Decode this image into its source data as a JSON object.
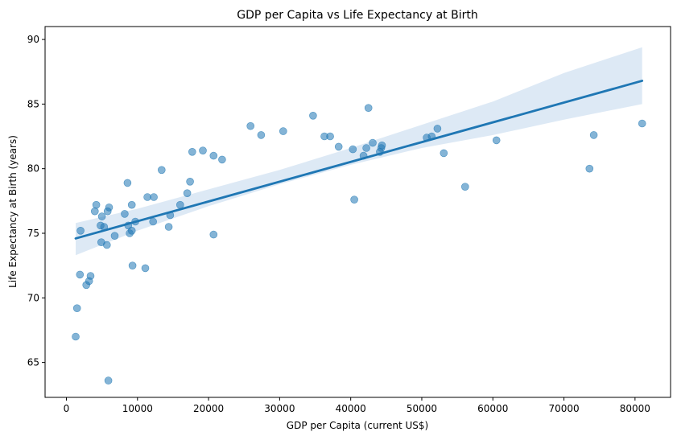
{
  "chart_data": {
    "type": "scatter",
    "title": "GDP per Capita vs Life Expectancy at Birth",
    "xlabel": "GDP per Capita (current US$)",
    "ylabel": "Life Expectancy at Birth (years)",
    "xlim": [
      -3000,
      85000
    ],
    "ylim": [
      62.3,
      91.0
    ],
    "xticks": [
      0,
      10000,
      20000,
      30000,
      40000,
      50000,
      60000,
      70000,
      80000
    ],
    "yticks": [
      65,
      70,
      75,
      80,
      85,
      90
    ],
    "grid": false,
    "colors": {
      "points": "#1f77b4",
      "line": "#1f77b4",
      "band": "#c6dbef"
    },
    "points": [
      {
        "x": 1300,
        "y": 67.0
      },
      {
        "x": 1500,
        "y": 69.2
      },
      {
        "x": 1900,
        "y": 71.8
      },
      {
        "x": 2000,
        "y": 75.2
      },
      {
        "x": 2800,
        "y": 71.0
      },
      {
        "x": 3200,
        "y": 71.3
      },
      {
        "x": 3400,
        "y": 71.7
      },
      {
        "x": 4000,
        "y": 76.7
      },
      {
        "x": 4200,
        "y": 77.2
      },
      {
        "x": 4800,
        "y": 75.6
      },
      {
        "x": 4900,
        "y": 74.3
      },
      {
        "x": 5000,
        "y": 76.3
      },
      {
        "x": 5300,
        "y": 75.5
      },
      {
        "x": 5700,
        "y": 74.1
      },
      {
        "x": 5800,
        "y": 76.7
      },
      {
        "x": 5900,
        "y": 63.6
      },
      {
        "x": 6000,
        "y": 77.0
      },
      {
        "x": 6800,
        "y": 74.8
      },
      {
        "x": 8200,
        "y": 76.5
      },
      {
        "x": 8600,
        "y": 78.9
      },
      {
        "x": 8700,
        "y": 75.6
      },
      {
        "x": 8900,
        "y": 75.0
      },
      {
        "x": 9200,
        "y": 75.2
      },
      {
        "x": 9200,
        "y": 77.2
      },
      {
        "x": 9300,
        "y": 72.5
      },
      {
        "x": 9700,
        "y": 75.9
      },
      {
        "x": 11100,
        "y": 72.3
      },
      {
        "x": 11400,
        "y": 77.8
      },
      {
        "x": 12200,
        "y": 75.9
      },
      {
        "x": 12300,
        "y": 77.8
      },
      {
        "x": 13400,
        "y": 79.9
      },
      {
        "x": 14400,
        "y": 75.5
      },
      {
        "x": 14600,
        "y": 76.4
      },
      {
        "x": 16000,
        "y": 77.2
      },
      {
        "x": 17000,
        "y": 78.1
      },
      {
        "x": 17400,
        "y": 79.0
      },
      {
        "x": 17700,
        "y": 81.3
      },
      {
        "x": 19200,
        "y": 81.4
      },
      {
        "x": 20700,
        "y": 81.0
      },
      {
        "x": 20700,
        "y": 74.9
      },
      {
        "x": 21900,
        "y": 80.7
      },
      {
        "x": 25900,
        "y": 83.3
      },
      {
        "x": 27400,
        "y": 82.6
      },
      {
        "x": 30500,
        "y": 82.9
      },
      {
        "x": 34700,
        "y": 84.1
      },
      {
        "x": 36300,
        "y": 82.5
      },
      {
        "x": 37100,
        "y": 82.5
      },
      {
        "x": 38300,
        "y": 81.7
      },
      {
        "x": 40300,
        "y": 81.5
      },
      {
        "x": 40500,
        "y": 77.6
      },
      {
        "x": 41800,
        "y": 81.0
      },
      {
        "x": 42200,
        "y": 81.6
      },
      {
        "x": 42500,
        "y": 84.7
      },
      {
        "x": 43100,
        "y": 82.0
      },
      {
        "x": 44100,
        "y": 81.3
      },
      {
        "x": 44300,
        "y": 81.6
      },
      {
        "x": 44400,
        "y": 81.8
      },
      {
        "x": 50700,
        "y": 82.4
      },
      {
        "x": 51400,
        "y": 82.5
      },
      {
        "x": 52200,
        "y": 83.1
      },
      {
        "x": 53100,
        "y": 81.2
      },
      {
        "x": 56100,
        "y": 78.6
      },
      {
        "x": 60500,
        "y": 82.2
      },
      {
        "x": 73600,
        "y": 80.0
      },
      {
        "x": 74200,
        "y": 82.6
      },
      {
        "x": 81000,
        "y": 83.5
      }
    ],
    "regression": {
      "x": [
        1300,
        81000
      ],
      "y": [
        74.6,
        86.8
      ],
      "ci": [
        {
          "x": 1300,
          "lo": 73.3,
          "hi": 75.8
        },
        {
          "x": 10000,
          "lo": 75.2,
          "hi": 76.9
        },
        {
          "x": 20000,
          "lo": 77.1,
          "hi": 78.4
        },
        {
          "x": 30000,
          "lo": 78.8,
          "hi": 79.9
        },
        {
          "x": 40000,
          "lo": 80.3,
          "hi": 81.6
        },
        {
          "x": 50000,
          "lo": 81.6,
          "hi": 83.4
        },
        {
          "x": 60000,
          "lo": 82.6,
          "hi": 85.2
        },
        {
          "x": 70000,
          "lo": 83.8,
          "hi": 87.4
        },
        {
          "x": 81000,
          "lo": 85.0,
          "hi": 89.4
        }
      ]
    }
  }
}
